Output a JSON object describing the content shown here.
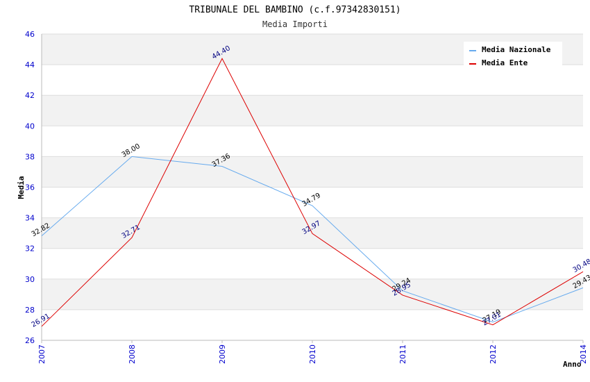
{
  "chart_data": {
    "type": "line",
    "title": "TRIBUNALE DEL BAMBINO (c.f.97342830151)",
    "subtitle": "Media Importi",
    "xlabel": "Anno",
    "ylabel": "Media",
    "categories": [
      "2007",
      "2008",
      "2009",
      "2010",
      "2011",
      "2012",
      "2014"
    ],
    "ylim": [
      26,
      46
    ],
    "yticks": [
      26,
      28,
      30,
      32,
      34,
      36,
      38,
      40,
      42,
      44,
      46
    ],
    "grid": true,
    "legend_position": "top-right",
    "series": [
      {
        "name": "Media Nazionale",
        "color": "#66aaee",
        "label_color": "#000000",
        "values": [
          32.82,
          38.0,
          37.36,
          34.79,
          29.24,
          27.19,
          29.43
        ],
        "labels": [
          "32.82",
          "38.00",
          "37.36",
          "34.79",
          "29.24",
          "27.19",
          "29.43"
        ]
      },
      {
        "name": "Media Ente",
        "color": "#dd0000",
        "label_color": "#000080",
        "values": [
          26.91,
          32.71,
          44.4,
          32.97,
          28.95,
          27.01,
          30.48
        ],
        "labels": [
          "26.91",
          "32.71",
          "44.40",
          "32.97",
          "28.95",
          "27.01",
          "30.48"
        ]
      }
    ]
  }
}
